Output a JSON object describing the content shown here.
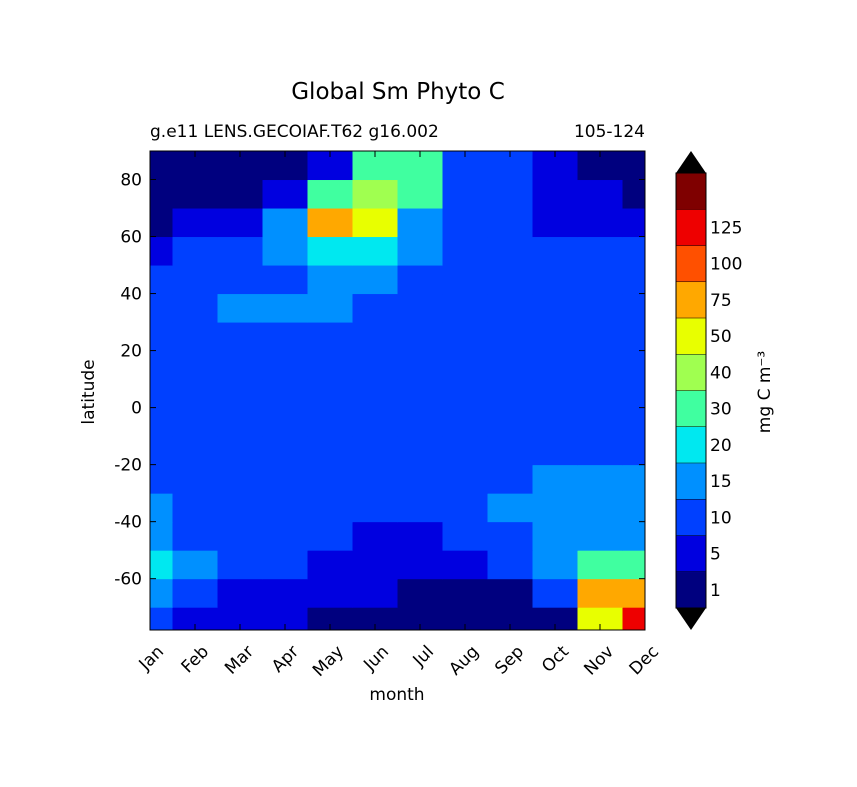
{
  "chart_data": {
    "type": "contourf",
    "title": "Global Sm Phyto C",
    "subtitle_left": "g.e11 LENS.GECOIAF.T62 g16.002",
    "subtitle_right": "105-124",
    "xlabel": "month",
    "ylabel": "latitude",
    "colorbar_label": "mg C m⁻³",
    "categories": [
      "Jan",
      "Feb",
      "Mar",
      "Apr",
      "May",
      "Jun",
      "Jul",
      "Aug",
      "Sep",
      "Oct",
      "Nov",
      "Dec"
    ],
    "y": [
      -75,
      -65,
      -55,
      -45,
      -35,
      -25,
      -15,
      -5,
      5,
      15,
      25,
      35,
      45,
      55,
      65,
      75,
      85
    ],
    "ylim": [
      -78,
      90
    ],
    "yticks": [
      -60,
      -40,
      -20,
      0,
      20,
      40,
      60,
      80
    ],
    "levels": [
      1,
      5,
      10,
      15,
      20,
      30,
      40,
      50,
      75,
      100,
      125
    ],
    "colors": [
      "#00007f",
      "#0000e0",
      "#0040ff",
      "#0090ff",
      "#00e8f0",
      "#40ffa0",
      "#a0ff50",
      "#e8ff00",
      "#ffa800",
      "#ff5000",
      "#ee0000",
      "#7f0000"
    ],
    "z": [
      [
        7,
        3,
        3,
        3,
        0.5,
        0.5,
        0.5,
        0.5,
        0.5,
        0.5,
        40,
        110
      ],
      [
        12,
        7,
        3,
        3,
        3,
        3,
        0.5,
        0.5,
        0.5,
        7,
        60,
        60
      ],
      [
        17,
        12,
        7,
        7,
        3,
        3,
        3,
        3,
        7,
        12,
        25,
        20
      ],
      [
        12,
        7,
        7,
        7,
        7,
        3,
        3,
        7,
        7,
        12,
        12,
        12
      ],
      [
        12,
        7,
        7,
        7,
        7,
        7,
        7,
        7,
        12,
        12,
        12,
        12
      ],
      [
        7,
        7,
        7,
        7,
        7,
        7,
        7,
        7,
        7,
        12,
        12,
        12
      ],
      [
        7,
        7,
        7,
        7,
        7,
        7,
        7,
        7,
        7,
        7,
        7,
        7
      ],
      [
        7,
        7,
        7,
        7,
        7,
        7,
        7,
        7,
        7,
        7,
        7,
        7
      ],
      [
        7,
        7,
        7,
        7,
        7,
        7,
        7,
        7,
        7,
        7,
        7,
        7
      ],
      [
        7,
        7,
        7,
        7,
        7,
        7,
        7,
        7,
        7,
        7,
        7,
        7
      ],
      [
        7,
        7,
        7,
        7,
        7,
        7,
        7,
        7,
        7,
        7,
        7,
        7
      ],
      [
        7,
        7,
        12,
        12,
        12,
        7,
        7,
        7,
        7,
        7,
        7,
        7
      ],
      [
        7,
        7,
        7,
        7,
        12,
        12,
        7,
        7,
        7,
        7,
        7,
        7
      ],
      [
        3,
        7,
        7,
        12,
        17,
        17,
        12,
        7,
        7,
        7,
        7,
        7
      ],
      [
        0.5,
        3,
        3,
        12,
        60,
        40,
        12,
        7,
        7,
        3,
        3,
        3
      ],
      [
        0.5,
        0.5,
        0.5,
        3,
        25,
        35,
        25,
        7,
        7,
        3,
        3,
        0.5
      ],
      [
        0.5,
        0.5,
        0.5,
        0.5,
        3,
        25,
        25,
        7,
        7,
        3,
        0.5,
        0.5
      ]
    ]
  }
}
